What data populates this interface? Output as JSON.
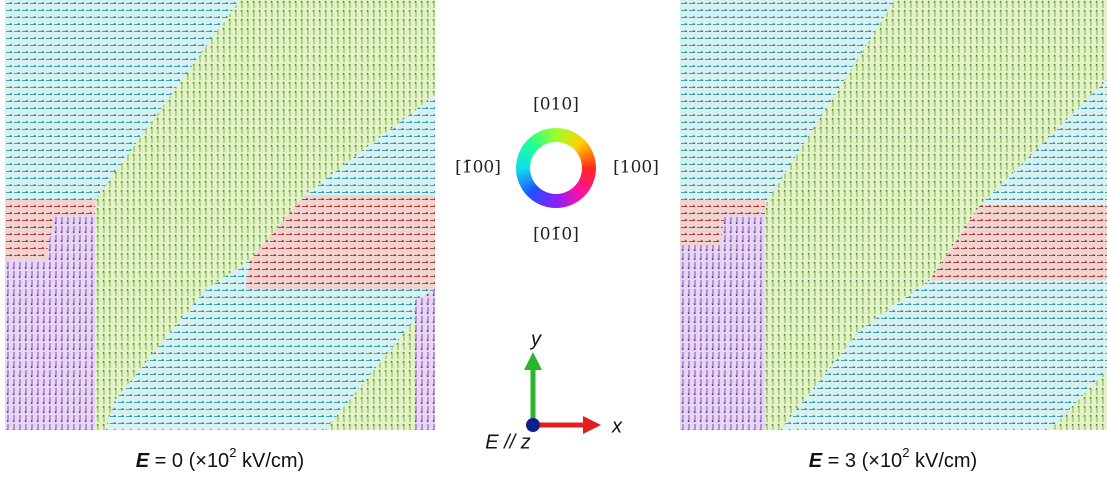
{
  "color_wheel": {
    "top": "[010]",
    "right": "[100]",
    "left": "[1̄00]",
    "bottom": "[01̄0]"
  },
  "axes": {
    "y_label": "y",
    "x_label": "x",
    "field_label": "E // z"
  },
  "panels": [
    {
      "symbol": "E",
      "text": " = 0 (×10",
      "exponent": "2",
      "unit": " kV/cm)"
    },
    {
      "symbol": "E",
      "text": " = 3 (×10",
      "exponent": "2",
      "unit": " kV/cm)"
    }
  ]
}
